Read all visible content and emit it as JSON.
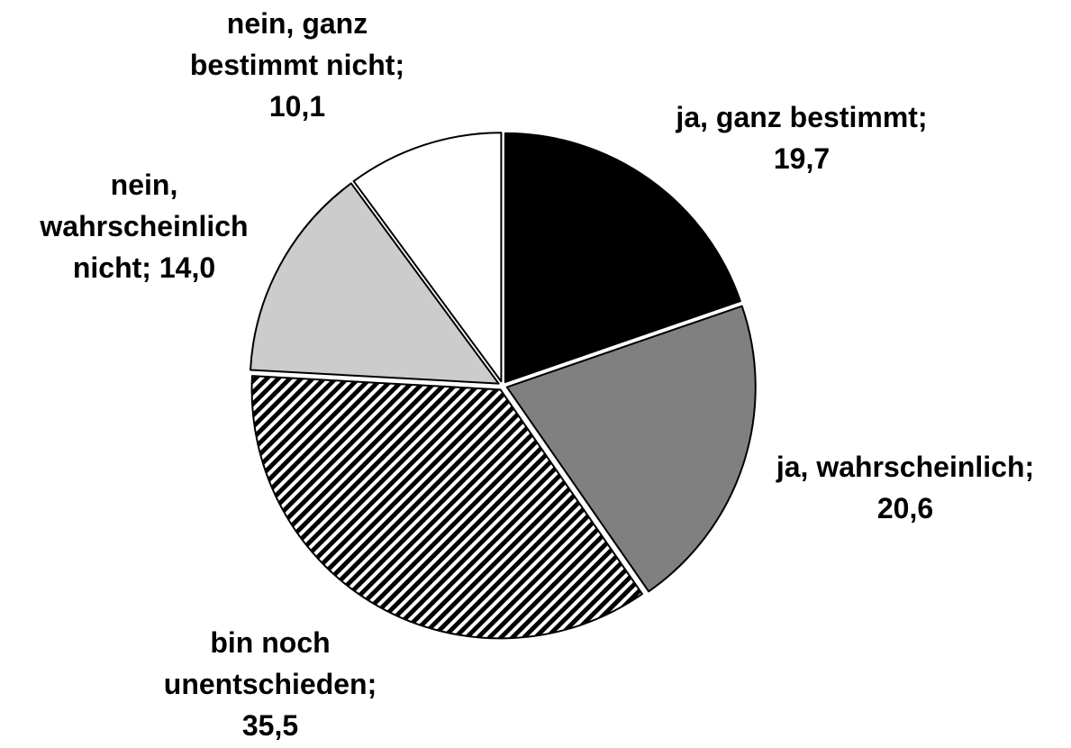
{
  "chart_data": {
    "type": "pie",
    "categories": [
      "ja, ganz bestimmt;",
      "ja, wahrscheinlich;",
      "bin noch unentschieden;",
      "nein, wahrscheinlich nicht;",
      "nein, ganz bestimmt nicht;"
    ],
    "values": [
      19.7,
      20.6,
      35.5,
      14.0,
      10.1
    ],
    "value_labels": [
      "19,7",
      "20,6",
      "35,5",
      "14,0",
      "10,1"
    ],
    "colors": [
      "#000000",
      "#808080",
      "hatch",
      "#cccccc",
      "#ffffff"
    ]
  }
}
